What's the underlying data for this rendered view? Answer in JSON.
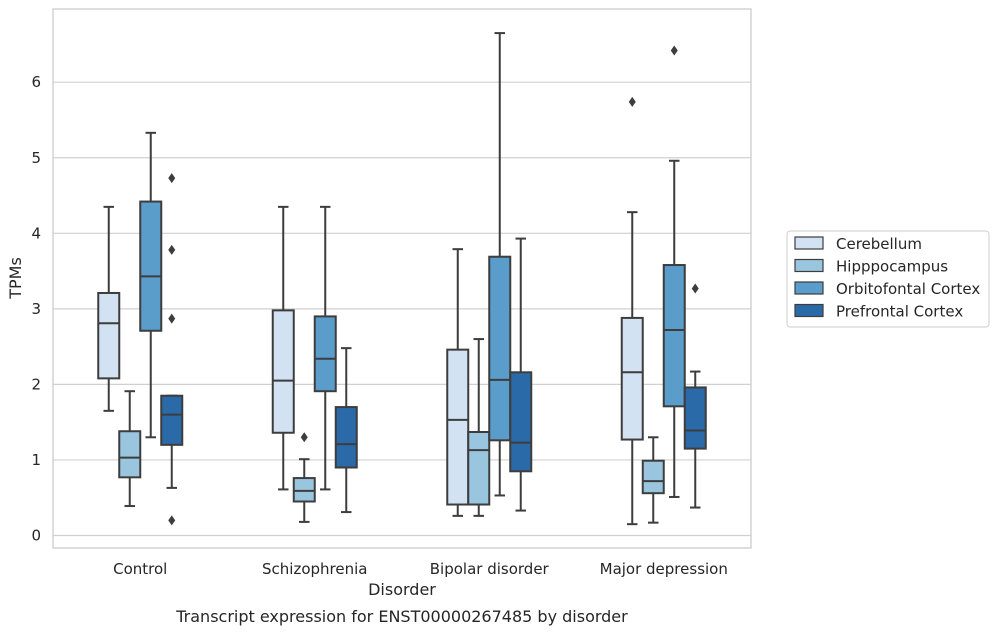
{
  "chart_data": {
    "type": "box",
    "xlabel": "Disorder",
    "ylabel": "TPMs",
    "caption": "Transcript expression for ENST00000267485 by disorder",
    "ylim": [
      -0.15,
      7.0
    ],
    "yticks": [
      0,
      1,
      2,
      3,
      4,
      5,
      6
    ],
    "grid": true,
    "legend_position": "right",
    "categories": [
      "Control",
      "Schizophrenia",
      "Bipolar disorder",
      "Major depression"
    ],
    "series": [
      {
        "name": "Cerebellum",
        "color": "#d2e2f2",
        "boxes": [
          {
            "whisker_low": 1.65,
            "q1": 2.08,
            "median": 2.81,
            "q3": 3.21,
            "whisker_high": 4.35,
            "outliers": []
          },
          {
            "whisker_low": 0.61,
            "q1": 1.36,
            "median": 2.05,
            "q3": 2.98,
            "whisker_high": 4.35,
            "outliers": []
          },
          {
            "whisker_low": 0.26,
            "q1": 0.41,
            "median": 1.53,
            "q3": 2.46,
            "whisker_high": 3.79,
            "outliers": []
          },
          {
            "whisker_low": 0.15,
            "q1": 1.27,
            "median": 2.16,
            "q3": 2.88,
            "whisker_high": 4.28,
            "outliers": [
              5.74
            ]
          }
        ]
      },
      {
        "name": "Hipppocampus",
        "color": "#9ac5de",
        "boxes": [
          {
            "whisker_low": 0.39,
            "q1": 0.77,
            "median": 1.03,
            "q3": 1.38,
            "whisker_high": 1.91,
            "outliers": []
          },
          {
            "whisker_low": 0.18,
            "q1": 0.45,
            "median": 0.59,
            "q3": 0.76,
            "whisker_high": 1.01,
            "outliers": [
              1.3
            ]
          },
          {
            "whisker_low": 0.26,
            "q1": 0.41,
            "median": 1.13,
            "q3": 1.37,
            "whisker_high": 2.6,
            "outliers": []
          },
          {
            "whisker_low": 0.17,
            "q1": 0.56,
            "median": 0.72,
            "q3": 0.99,
            "whisker_high": 1.3,
            "outliers": []
          }
        ]
      },
      {
        "name": "Orbitofontal Cortex",
        "color": "#5a9dcb",
        "boxes": [
          {
            "whisker_low": 1.3,
            "q1": 2.71,
            "median": 3.43,
            "q3": 4.42,
            "whisker_high": 5.33,
            "outliers": []
          },
          {
            "whisker_low": 0.61,
            "q1": 1.91,
            "median": 2.34,
            "q3": 2.9,
            "whisker_high": 4.35,
            "outliers": []
          },
          {
            "whisker_low": 0.53,
            "q1": 1.26,
            "median": 2.06,
            "q3": 3.69,
            "whisker_high": 6.65,
            "outliers": []
          },
          {
            "whisker_low": 0.51,
            "q1": 1.71,
            "median": 2.72,
            "q3": 3.58,
            "whisker_high": 4.96,
            "outliers": [
              6.42
            ]
          }
        ]
      },
      {
        "name": "Prefrontal Cortex",
        "color": "#2b6aa8",
        "boxes": [
          {
            "whisker_low": 0.63,
            "q1": 1.2,
            "median": 1.6,
            "q3": 1.85,
            "whisker_high": 1.85,
            "outliers": [
              4.73,
              3.78,
              2.87,
              0.2
            ]
          },
          {
            "whisker_low": 0.31,
            "q1": 0.9,
            "median": 1.21,
            "q3": 1.7,
            "whisker_high": 2.48,
            "outliers": []
          },
          {
            "whisker_low": 0.33,
            "q1": 0.85,
            "median": 1.23,
            "q3": 2.16,
            "whisker_high": 3.93,
            "outliers": []
          },
          {
            "whisker_low": 0.37,
            "q1": 1.15,
            "median": 1.39,
            "q3": 1.96,
            "whisker_high": 2.17,
            "outliers": [
              3.27
            ]
          }
        ]
      }
    ]
  }
}
